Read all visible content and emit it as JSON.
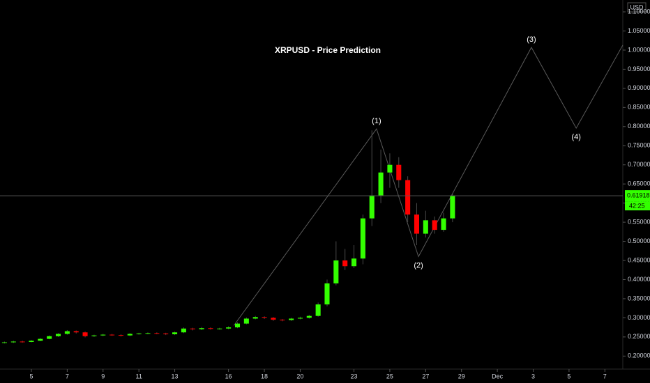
{
  "chart_data": {
    "type": "candlestick",
    "title": "XRPUSD - Price Prediction",
    "currency": "USD",
    "up_color": "#33ff00",
    "down_color": "#ff0000",
    "x": [
      3.5,
      4,
      4.5,
      5,
      5.5,
      6,
      6.5,
      7,
      7.5,
      8,
      8.5,
      9,
      9.5,
      10,
      10.5,
      11,
      11.5,
      12,
      12.5,
      13,
      13.5,
      14,
      14.5,
      15,
      15.5,
      16,
      16.5,
      17,
      17.5,
      18,
      18.5,
      19,
      19.5,
      20,
      20.5,
      21,
      21.5,
      22,
      22.5,
      23,
      23.5,
      24,
      24.5,
      25,
      25.5,
      26,
      26.5,
      27,
      27.5,
      28,
      28.5
    ],
    "open": [
      0.235,
      0.236,
      0.238,
      0.237,
      0.24,
      0.245,
      0.252,
      0.258,
      0.265,
      0.262,
      0.252,
      0.254,
      0.256,
      0.255,
      0.254,
      0.258,
      0.259,
      0.26,
      0.259,
      0.257,
      0.262,
      0.272,
      0.27,
      0.273,
      0.271,
      0.272,
      0.275,
      0.285,
      0.298,
      0.302,
      0.3,
      0.295,
      0.294,
      0.298,
      0.3,
      0.305,
      0.335,
      0.39,
      0.45,
      0.435,
      0.455,
      0.56,
      0.62,
      0.68,
      0.7,
      0.66,
      0.57,
      0.52,
      0.555,
      0.53,
      0.56
    ],
    "high": [
      0.238,
      0.24,
      0.24,
      0.242,
      0.247,
      0.254,
      0.26,
      0.268,
      0.267,
      0.264,
      0.256,
      0.258,
      0.258,
      0.257,
      0.26,
      0.261,
      0.262,
      0.262,
      0.261,
      0.264,
      0.275,
      0.274,
      0.276,
      0.275,
      0.274,
      0.278,
      0.288,
      0.301,
      0.305,
      0.304,
      0.302,
      0.297,
      0.3,
      0.303,
      0.308,
      0.34,
      0.4,
      0.5,
      0.48,
      0.49,
      0.57,
      0.79,
      0.74,
      0.73,
      0.72,
      0.67,
      0.6,
      0.58,
      0.565,
      0.575,
      0.625
    ],
    "low": [
      0.233,
      0.234,
      0.235,
      0.236,
      0.239,
      0.244,
      0.25,
      0.256,
      0.259,
      0.249,
      0.25,
      0.252,
      0.253,
      0.251,
      0.252,
      0.256,
      0.257,
      0.257,
      0.255,
      0.255,
      0.26,
      0.267,
      0.268,
      0.269,
      0.269,
      0.27,
      0.273,
      0.283,
      0.296,
      0.297,
      0.292,
      0.291,
      0.292,
      0.296,
      0.298,
      0.303,
      0.33,
      0.385,
      0.425,
      0.43,
      0.44,
      0.54,
      0.6,
      0.64,
      0.64,
      0.55,
      0.49,
      0.51,
      0.52,
      0.525,
      0.55
    ],
    "close": [
      0.236,
      0.238,
      0.237,
      0.24,
      0.245,
      0.252,
      0.258,
      0.265,
      0.262,
      0.252,
      0.254,
      0.256,
      0.255,
      0.254,
      0.258,
      0.259,
      0.26,
      0.259,
      0.257,
      0.262,
      0.272,
      0.27,
      0.273,
      0.271,
      0.272,
      0.275,
      0.285,
      0.298,
      0.302,
      0.3,
      0.295,
      0.294,
      0.298,
      0.3,
      0.305,
      0.335,
      0.39,
      0.45,
      0.435,
      0.455,
      0.56,
      0.62,
      0.68,
      0.7,
      0.66,
      0.57,
      0.52,
      0.555,
      0.53,
      0.56,
      0.61918
    ],
    "last_price": 0.61918,
    "countdown": "42:25",
    "wave": {
      "x": [
        16.3,
        24.26,
        26.6,
        32.9,
        35.4,
        38.0
      ],
      "y": [
        0.28,
        0.794,
        0.46,
        1.007,
        0.796,
        1.013
      ],
      "labels": [
        null,
        "(1)",
        "(2)",
        "(3)",
        "(4)",
        null
      ],
      "color": "#5a5a5a"
    },
    "xlim": [
      3.25,
      38.0
    ],
    "ylim": [
      0.166,
      1.131
    ],
    "xticks": [
      5,
      7,
      9,
      11,
      13,
      16,
      18,
      20,
      23,
      25,
      27,
      29,
      {
        "value": 31,
        "label": "Dec"
      },
      {
        "value": 33,
        "label": "3"
      },
      {
        "value": 35,
        "label": "5"
      },
      {
        "value": 37,
        "label": "7"
      }
    ],
    "yticks": [
      {
        "value": 0.2,
        "label": "0.20000"
      },
      {
        "value": 0.25,
        "label": "0.25000"
      },
      {
        "value": 0.3,
        "label": "0.30000"
      },
      {
        "value": 0.35,
        "label": "0.35000"
      },
      {
        "value": 0.4,
        "label": "0.40000"
      },
      {
        "value": 0.45,
        "label": "0.45000"
      },
      {
        "value": 0.5,
        "label": "0.50000"
      },
      {
        "value": 0.55,
        "label": "0.55000"
      },
      {
        "value": 0.6,
        "label": "0.60000"
      },
      {
        "value": 0.65,
        "label": "0.65000"
      },
      {
        "value": 0.7,
        "label": "0.70000"
      },
      {
        "value": 0.75,
        "label": "0.75000"
      },
      {
        "value": 0.8,
        "label": "0.80000"
      },
      {
        "value": 0.85,
        "label": "0.85000"
      },
      {
        "value": 0.9,
        "label": "0.90000"
      },
      {
        "value": 0.95,
        "label": "0.95000"
      },
      {
        "value": 1.0,
        "label": "1.00000"
      },
      {
        "value": 1.05,
        "label": "1.05000"
      },
      {
        "value": 1.1,
        "label": "1.10000"
      }
    ],
    "grid": false
  }
}
